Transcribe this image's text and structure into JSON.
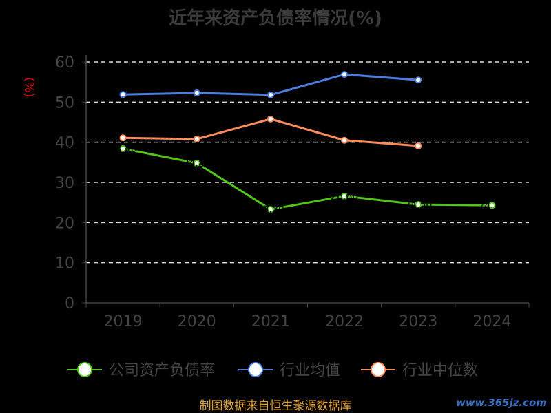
{
  "chart_data": {
    "type": "line",
    "title": "近年来资产负债率情况(%)",
    "ylabel": "(%)",
    "categories": [
      "2019",
      "2020",
      "2021",
      "2022",
      "2023",
      "2024"
    ],
    "ylim": [
      0,
      60
    ],
    "yticks": [
      0,
      10,
      20,
      30,
      40,
      50,
      60
    ],
    "grid": true,
    "legend_position": "bottom",
    "series": [
      {
        "name": "公司资产负债率",
        "color": "#52c41a",
        "values": [
          38.4,
          34.8,
          23.3,
          26.6,
          24.5,
          24.3
        ]
      },
      {
        "name": "行业均值",
        "color": "#4a7fe0",
        "values": [
          51.9,
          52.3,
          51.8,
          56.9,
          55.5,
          null
        ]
      },
      {
        "name": "行业中位数",
        "color": "#ff8c5a",
        "values": [
          41.1,
          40.8,
          45.8,
          40.5,
          39.1,
          null
        ]
      }
    ]
  },
  "footer": {
    "source": "制图数据来自恒生聚源数据库",
    "watermark": "www.365jz.com"
  }
}
